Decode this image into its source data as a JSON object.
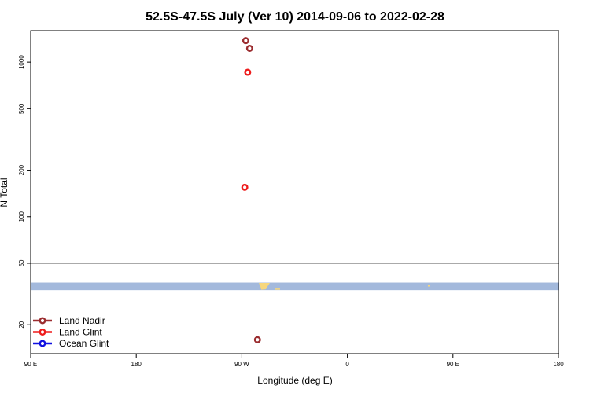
{
  "chart_data": {
    "type": "scatter",
    "title": "52.5S-47.5S July (Ver 10)   2014-09-06 to 2022-02-28",
    "xlabel": "Longitude (deg E)",
    "ylabel": "N Total",
    "xlim": [
      -90,
      180
    ],
    "ylim": [
      13,
      1600
    ],
    "yscale": "log",
    "grid": false,
    "legend_position": "bottom-left",
    "x_ticks": [
      {
        "value": -90,
        "label": "90 E"
      },
      {
        "value": -36,
        "label": "180"
      },
      {
        "value": 18,
        "label": "90 W"
      },
      {
        "value": 72,
        "label": "0"
      },
      {
        "value": 126,
        "label": "90 E"
      },
      {
        "value": 180,
        "label": "180"
      }
    ],
    "y_ticks": [
      {
        "value": 20,
        "label": "20"
      },
      {
        "value": 50,
        "label": "50"
      },
      {
        "value": 100,
        "label": "100"
      },
      {
        "value": 200,
        "label": "200"
      },
      {
        "value": 500,
        "label": "500"
      },
      {
        "value": 1000,
        "label": "1000"
      }
    ],
    "reference_line": {
      "y": 50,
      "color": "#555555"
    },
    "map_strip": {
      "y_low": 33.5,
      "y_high": 37.5,
      "ocean_color": "#a3b9dc",
      "land_color": "#f7d77c"
    },
    "series": [
      {
        "name": "Land Nadir",
        "color": "#9b2d30",
        "points": [
          {
            "x": 20,
            "y": 1380
          },
          {
            "x": 22,
            "y": 1230
          },
          {
            "x": 26,
            "y": 16
          }
        ]
      },
      {
        "name": "Land Glint",
        "color": "#ee1c1c",
        "points": [
          {
            "x": 21,
            "y": 860
          },
          {
            "x": 19.5,
            "y": 155
          }
        ]
      },
      {
        "name": "Ocean Glint",
        "color": "#1010e0",
        "points": []
      }
    ]
  }
}
